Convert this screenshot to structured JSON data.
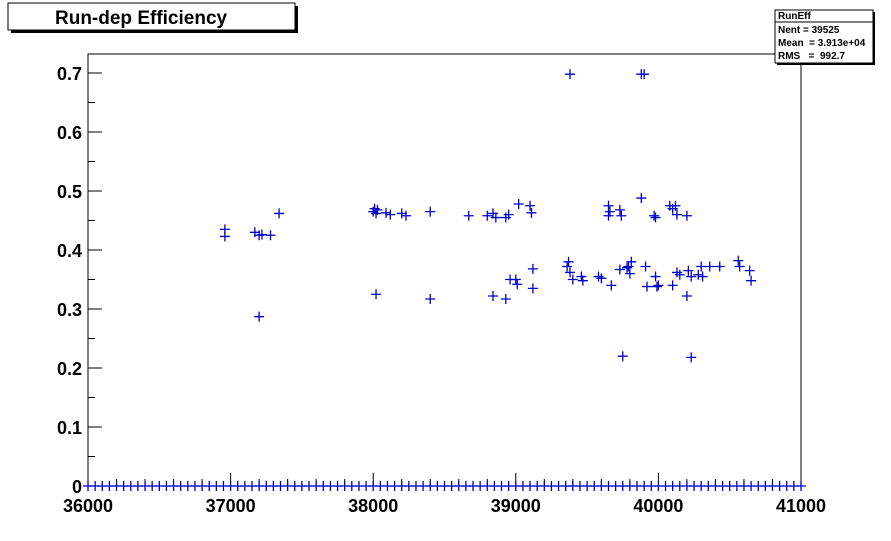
{
  "chart_data": {
    "type": "scatter",
    "title": "Run-dep Efficiency",
    "stats": {
      "name": "RunEff",
      "lines": [
        "Nent = 39525",
        "Mean  = 3.913e+04",
        "RMS   =  992.7"
      ]
    },
    "color": "#0000cc",
    "xlim": [
      36000,
      41000
    ],
    "xticks": [
      36000,
      37000,
      38000,
      39000,
      40000,
      41000
    ],
    "ylim": [
      0,
      0.7
    ],
    "yticks": [
      0,
      0.1,
      0.2,
      0.3,
      0.4,
      0.5,
      0.6,
      0.7
    ],
    "x": [
      36960,
      36960,
      37170,
      37200,
      37220,
      37200,
      37280,
      37340,
      38000,
      38010,
      38020,
      38030,
      38020,
      38090,
      38120,
      38200,
      38230,
      38400,
      38400,
      38670,
      38800,
      38840,
      38860,
      38840,
      38930,
      38950,
      38930,
      38960,
      39000,
      39010,
      39020,
      39100,
      39110,
      39120,
      39120,
      39360,
      39370,
      39380,
      39380,
      39400,
      39460,
      39470,
      39580,
      39600,
      39650,
      39650,
      39660,
      39670,
      39730,
      39740,
      39730,
      39750,
      39780,
      39790,
      39800,
      39810,
      39880,
      39900,
      39880,
      39910,
      39920,
      39970,
      39980,
      39980,
      39990,
      40000,
      40080,
      40100,
      40120,
      40130,
      40100,
      40130,
      40150,
      40200,
      40200,
      40210,
      40230,
      40230,
      40280,
      40300,
      40310,
      40360,
      40430,
      40560,
      40570,
      40640,
      40650,
      36000,
      36050,
      36100,
      36150,
      36200,
      36250,
      36300,
      36350,
      36400,
      36450,
      36500,
      36550,
      36600,
      36650,
      36700,
      36750,
      36800,
      36850,
      36900,
      36950,
      37000,
      37050,
      37100,
      37150,
      37200,
      37250,
      37300,
      37350,
      37400,
      37450,
      37500,
      37550,
      37600,
      37650,
      37700,
      37750,
      37800,
      37850,
      37900,
      37950,
      38000,
      38050,
      38100,
      38150,
      38200,
      38250,
      38300,
      38350,
      38400,
      38450,
      38500,
      38550,
      38600,
      38650,
      38700,
      38750,
      38800,
      38850,
      38900,
      38950,
      39000,
      39050,
      39100,
      39150,
      39200,
      39250,
      39300,
      39350,
      39400,
      39450,
      39500,
      39550,
      39600,
      39650,
      39700,
      39750,
      39800,
      39850,
      39900,
      39950,
      40000,
      40050,
      40100,
      40150,
      40200,
      40250,
      40300,
      40350,
      40400,
      40450,
      40500,
      40550,
      40600,
      40650,
      40700,
      40750,
      40800,
      40850,
      40900,
      40950,
      41000
    ],
    "y": [
      0.435,
      0.423,
      0.43,
      0.425,
      0.426,
      0.287,
      0.425,
      0.462,
      0.465,
      0.47,
      0.462,
      0.468,
      0.325,
      0.463,
      0.46,
      0.462,
      0.458,
      0.465,
      0.317,
      0.458,
      0.458,
      0.462,
      0.455,
      0.322,
      0.455,
      0.46,
      0.317,
      0.35,
      0.35,
      0.342,
      0.478,
      0.475,
      0.463,
      0.368,
      0.335,
      0.372,
      0.38,
      0.362,
      0.698,
      0.35,
      0.355,
      0.348,
      0.355,
      0.352,
      0.475,
      0.458,
      0.465,
      0.34,
      0.468,
      0.458,
      0.367,
      0.22,
      0.37,
      0.372,
      0.36,
      0.38,
      0.698,
      0.698,
      0.488,
      0.372,
      0.338,
      0.458,
      0.455,
      0.355,
      0.338,
      0.34,
      0.475,
      0.47,
      0.475,
      0.46,
      0.34,
      0.362,
      0.358,
      0.458,
      0.322,
      0.365,
      0.355,
      0.218,
      0.358,
      0.372,
      0.355,
      0.372,
      0.372,
      0.382,
      0.372,
      0.365,
      0.348,
      0,
      0,
      0,
      0,
      0,
      0,
      0,
      0,
      0,
      0,
      0,
      0,
      0,
      0,
      0,
      0,
      0,
      0,
      0,
      0,
      0,
      0,
      0,
      0,
      0,
      0,
      0,
      0,
      0,
      0,
      0,
      0,
      0,
      0,
      0,
      0,
      0,
      0,
      0,
      0,
      0,
      0,
      0,
      0,
      0,
      0,
      0,
      0,
      0,
      0,
      0,
      0,
      0,
      0,
      0,
      0,
      0,
      0,
      0,
      0,
      0,
      0,
      0,
      0,
      0,
      0,
      0,
      0,
      0,
      0,
      0,
      0,
      0,
      0,
      0,
      0,
      0,
      0,
      0,
      0,
      0,
      0,
      0,
      0,
      0,
      0,
      0,
      0,
      0,
      0,
      0,
      0,
      0,
      0,
      0,
      0,
      0,
      0,
      0,
      0,
      0
    ]
  }
}
